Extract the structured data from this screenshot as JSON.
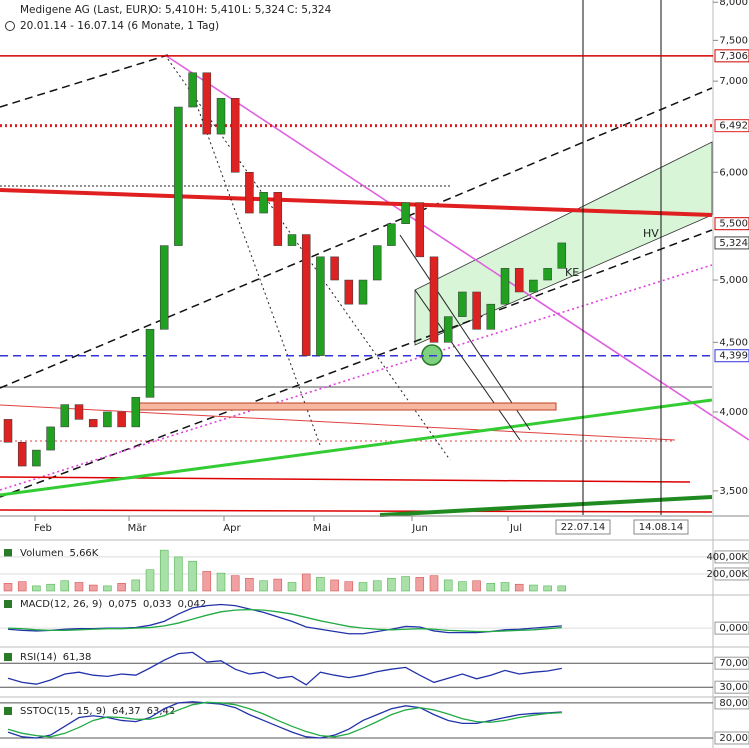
{
  "header": {
    "symbol": "Medigene AG (Last, EUR)",
    "open": "O: 5,410",
    "high": "H: 5,410",
    "low": "L: 5,324",
    "close": "C: 5,324",
    "range": "20.01.14 - 16.07.14 (6 Monate, 1 Tag)"
  },
  "chart_data": {
    "type": "candlestick",
    "log_scale": true,
    "up_color": "#22a022",
    "down_color": "#dd2222",
    "open": [
      3.95,
      3.8,
      3.65,
      3.75,
      3.9,
      4.05,
      3.95,
      3.9,
      4.0,
      3.9,
      4.1,
      4.6,
      5.3,
      6.7,
      7.1,
      6.4,
      6.8,
      6.0,
      5.6,
      5.8,
      5.3,
      5.4,
      4.4,
      5.2,
      5.0,
      4.8,
      5.0,
      5.3,
      5.5,
      5.7,
      5.2,
      4.5,
      4.7,
      4.9,
      4.6,
      4.8,
      5.1,
      4.9,
      5.0,
      5.1
    ],
    "close": [
      3.8,
      3.65,
      3.75,
      3.9,
      4.05,
      3.95,
      3.9,
      4.0,
      3.9,
      4.1,
      4.6,
      5.3,
      6.7,
      7.1,
      6.4,
      6.8,
      6.0,
      5.6,
      5.8,
      5.3,
      5.4,
      4.4,
      5.2,
      5.0,
      4.8,
      5.0,
      5.3,
      5.5,
      5.7,
      5.2,
      4.5,
      4.7,
      4.9,
      4.6,
      4.8,
      5.1,
      4.9,
      5.0,
      5.1,
      5.324
    ],
    "ylim": [
      3.36,
      8.03
    ],
    "yticks": [
      {
        "value": 8,
        "label": "8,000"
      },
      {
        "value": 7.5,
        "label": "7,500"
      },
      {
        "value": 7,
        "label": "7,000"
      },
      {
        "value": 6,
        "label": "6,000"
      },
      {
        "value": 5,
        "label": "5,000"
      },
      {
        "value": 4.5,
        "label": "4,500"
      },
      {
        "value": 4,
        "label": "4,000"
      },
      {
        "value": 3.5,
        "label": "3,500"
      }
    ],
    "xlabels": [
      "Feb",
      "Mär",
      "Apr",
      "Mai",
      "Jun",
      "Jul"
    ],
    "date_markers": [
      "22.07.14",
      "14.08.14"
    ],
    "annotations": [
      "KE",
      "HV"
    ],
    "levels": [
      {
        "value": 7.306,
        "label": "7,306",
        "color": "#d00000",
        "style": "solid"
      },
      {
        "value": 6.492,
        "label": "6,492",
        "color": "#e02020",
        "style": "dotted"
      },
      {
        "value": 5.5,
        "label": "5,500",
        "color": "#d00000",
        "style": "none"
      },
      {
        "value": 5.324,
        "label": "5,324",
        "color": "#444444",
        "style": "none"
      },
      {
        "value": 4.399,
        "label": "4,399",
        "color": "#3333dd",
        "style": "dashed"
      }
    ],
    "panels": [
      {
        "type": "volume",
        "title": "Volumen",
        "readings": [
          "5,66K"
        ],
        "ylim": [
          0,
          540
        ],
        "yticks": [
          {
            "value": 400,
            "label": "400,00K"
          },
          {
            "value": 200,
            "label": "200,00K"
          }
        ],
        "series": [
          {
            "color": "#f0a0a0",
            "values": [
              90,
              110,
              60,
              80,
              120,
              100,
              70,
              60,
              90,
              130,
              250,
              480,
              400,
              350,
              230,
              210,
              180,
              150,
              120,
              140,
              100,
              200,
              160,
              130,
              110,
              100,
              120,
              150,
              170,
              160,
              180,
              130,
              110,
              120,
              90,
              100,
              80,
              70,
              60,
              60
            ]
          }
        ]
      },
      {
        "type": "line",
        "title": "MACD(12, 26, 9)",
        "readings": [
          "0,075",
          "0,033",
          "0,042"
        ],
        "ylim": [
          -0.3,
          0.5
        ],
        "yticks": [
          {
            "value": 0,
            "label": "0,000"
          }
        ],
        "series": [
          {
            "color": "#2233aa",
            "values": [
              -0.02,
              -0.04,
              -0.05,
              -0.04,
              -0.02,
              -0.01,
              -0.01,
              0,
              0,
              0.01,
              0.05,
              0.12,
              0.25,
              0.36,
              0.4,
              0.42,
              0.4,
              0.34,
              0.28,
              0.2,
              0.12,
              0.02,
              -0.02,
              -0.06,
              -0.1,
              -0.1,
              -0.06,
              -0.02,
              0.03,
              0.02,
              -0.05,
              -0.08,
              -0.08,
              -0.08,
              -0.06,
              -0.03,
              -0.02,
              0,
              0.02,
              0.04
            ]
          },
          {
            "color": "#22aa44",
            "values": [
              0,
              -0.01,
              -0.03,
              -0.04,
              -0.04,
              -0.03,
              -0.02,
              -0.01,
              -0.01,
              0,
              0.01,
              0.04,
              0.09,
              0.16,
              0.23,
              0.29,
              0.32,
              0.33,
              0.32,
              0.29,
              0.25,
              0.19,
              0.13,
              0.08,
              0.03,
              0,
              -0.02,
              -0.03,
              -0.02,
              -0.01,
              -0.02,
              -0.04,
              -0.05,
              -0.06,
              -0.06,
              -0.05,
              -0.04,
              -0.03,
              -0.01,
              0.01
            ]
          }
        ]
      },
      {
        "type": "line",
        "title": "RSI(14)",
        "readings": [
          "61,38"
        ],
        "ylim": [
          17,
          92
        ],
        "yticks": [
          {
            "value": 70,
            "label": "70,00"
          },
          {
            "value": 30,
            "label": "30,00"
          }
        ],
        "series": [
          {
            "color": "#2233aa",
            "values": [
              45,
              38,
              35,
              42,
              52,
              55,
              50,
              48,
              52,
              50,
              62,
              75,
              86,
              88,
              72,
              74,
              60,
              52,
              55,
              45,
              48,
              34,
              55,
              50,
              46,
              50,
              56,
              60,
              63,
              50,
              38,
              45,
              52,
              44,
              50,
              58,
              52,
              55,
              57,
              61.38
            ]
          }
        ]
      },
      {
        "type": "line",
        "title": "SSTOC(15, 15, 9)",
        "readings": [
          "64,37",
          "63,42"
        ],
        "ylim": [
          8,
          85
        ],
        "yticks": [
          {
            "value": 80,
            "label": "80,00"
          },
          {
            "value": 20,
            "label": "20,00"
          }
        ],
        "series": [
          {
            "color": "#2233aa",
            "values": [
              30,
              22,
              20,
              25,
              40,
              55,
              58,
              55,
              50,
              48,
              55,
              70,
              80,
              82,
              80,
              78,
              72,
              60,
              50,
              40,
              30,
              22,
              20,
              25,
              35,
              50,
              60,
              70,
              75,
              72,
              60,
              50,
              45,
              45,
              50,
              55,
              60,
              62,
              63,
              64.37
            ]
          },
          {
            "color": "#22aa44",
            "values": [
              35,
              28,
              24,
              22,
              28,
              38,
              50,
              56,
              55,
              52,
              52,
              58,
              68,
              77,
              81,
              80,
              77,
              70,
              61,
              50,
              40,
              31,
              24,
              22,
              27,
              37,
              48,
              60,
              68,
              72,
              68,
              61,
              53,
              48,
              47,
              50,
              55,
              59,
              62,
              63.42
            ]
          }
        ]
      }
    ]
  }
}
